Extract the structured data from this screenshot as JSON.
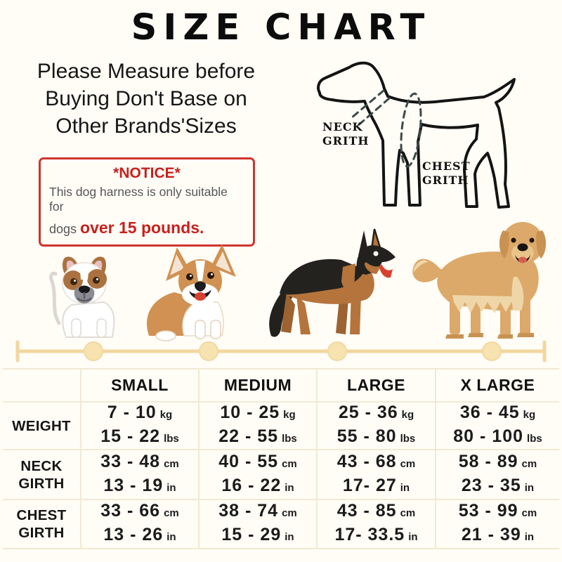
{
  "title": "SIZE CHART",
  "subtitle": {
    "lines": [
      "Please Measure before",
      "Buying Don't Base on",
      "Other Brands'Sizes"
    ]
  },
  "notice": {
    "heading": "*NOTICE*",
    "line1": "This dog harness is only suitable for",
    "line2_prefix": "dogs ",
    "line2_highlight": "over 15 pounds."
  },
  "diagram": {
    "neck_label_line1": "NECK",
    "neck_label_line2": "GRITH",
    "chest_label_line1": "CHEST",
    "chest_label_line2": "GRITH"
  },
  "dog_illustrations": [
    "french-bulldog",
    "corgi",
    "german-shepherd",
    "golden-retriever"
  ],
  "colors": {
    "accent_red": "#c8201d",
    "divider_gold": "#f2d7a0",
    "grid_line": "#f1e9d3",
    "background": "#fffdf6"
  },
  "chart_data": {
    "type": "table",
    "title": "SIZE CHART",
    "columns": [
      "SMALL",
      "MEDIUM",
      "LARGE",
      "X LARGE"
    ],
    "rows": [
      {
        "label": [
          "WEIGHT"
        ],
        "cells": [
          {
            "line1": "7 - 10",
            "unit1": "kg",
            "line2": "15 - 22",
            "unit2": "lbs"
          },
          {
            "line1": "10 - 25",
            "unit1": "kg",
            "line2": "22 - 55",
            "unit2": "lbs"
          },
          {
            "line1": "25 - 36",
            "unit1": "kg",
            "line2": "55 - 80",
            "unit2": "lbs"
          },
          {
            "line1": "36 - 45",
            "unit1": "kg",
            "line2": "80 - 100",
            "unit2": "lbs"
          }
        ]
      },
      {
        "label": [
          "NECK",
          "GIRTH"
        ],
        "cells": [
          {
            "line1": "33 - 48",
            "unit1": "cm",
            "line2": "13 - 19",
            "unit2": "in"
          },
          {
            "line1": "40 - 55",
            "unit1": "cm",
            "line2": "16 - 22",
            "unit2": "in"
          },
          {
            "line1": "43 - 68",
            "unit1": "cm",
            "line2": "17- 27",
            "unit2": "in"
          },
          {
            "line1": "58 - 89",
            "unit1": "cm",
            "line2": "23 - 35",
            "unit2": "in"
          }
        ]
      },
      {
        "label": [
          "CHEST",
          "GIRTH"
        ],
        "cells": [
          {
            "line1": "33 - 66",
            "unit1": "cm",
            "line2": "13 - 26",
            "unit2": "in"
          },
          {
            "line1": "38 - 74",
            "unit1": "cm",
            "line2": "15 - 29",
            "unit2": "in"
          },
          {
            "line1": "43 - 85",
            "unit1": "cm",
            "line2": "17- 33.5",
            "unit2": "in"
          },
          {
            "line1": "53 - 99",
            "unit1": "cm",
            "line2": "21 - 39",
            "unit2": "in"
          }
        ]
      }
    ]
  }
}
